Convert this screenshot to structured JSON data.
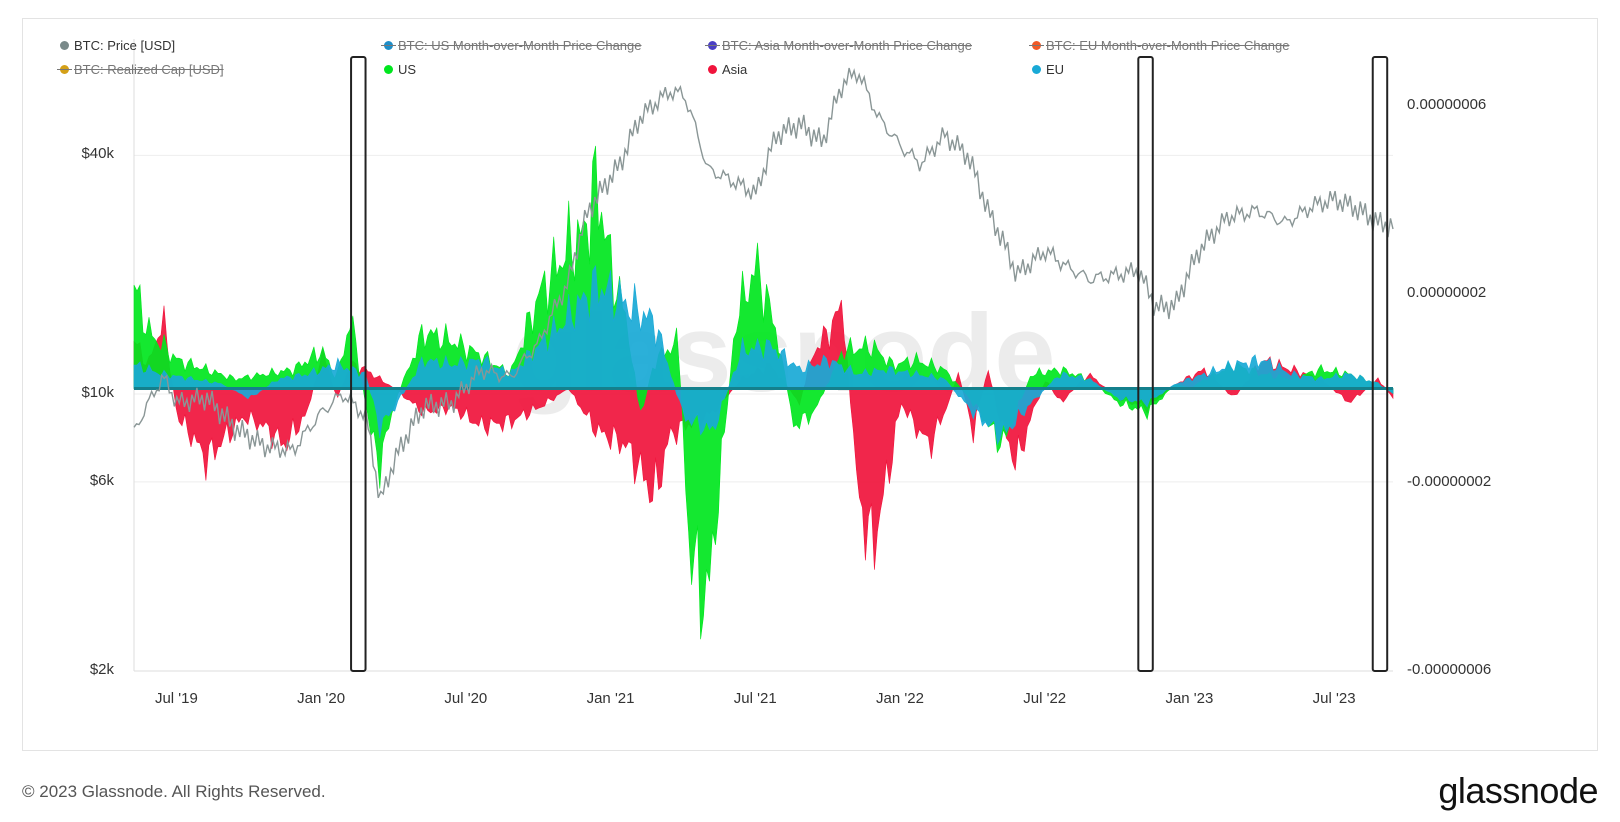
{
  "legend": [
    {
      "label": "BTC: Price [USD]",
      "color": "#7a8a8a",
      "disabled": false
    },
    {
      "label": "BTC: US Month-over-Month Price Change",
      "color": "#1e8ec8",
      "disabled": true
    },
    {
      "label": "BTC: Asia Month-over-Month Price Change",
      "color": "#4a3fc4",
      "disabled": true
    },
    {
      "label": "BTC: EU Month-over-Month Price Change",
      "color": "#f05a28",
      "disabled": true
    },
    {
      "label": "BTC: Realized Cap [USD]",
      "color": "#d4a017",
      "disabled": true
    },
    {
      "label": "US",
      "color": "#00e61e",
      "disabled": false
    },
    {
      "label": "Asia",
      "color": "#f0143c",
      "disabled": false
    },
    {
      "label": "EU",
      "color": "#19a9d6",
      "disabled": false
    }
  ],
  "footer": {
    "copyright": "© 2023 Glassnode. All Rights Reserved.",
    "logo": "glassnode"
  },
  "chart_data": {
    "type": "line",
    "title": "",
    "watermark": "glassnode",
    "x_ticks": [
      "Jul '19",
      "Jan '20",
      "Jul '20",
      "Jan '21",
      "Jul '21",
      "Jan '22",
      "Jul '22",
      "Jan '23",
      "Jul '23"
    ],
    "x_range": [
      2019.4,
      2023.75
    ],
    "left_axis": {
      "label": "",
      "scale": "log",
      "ticks": [
        "$2k",
        "$6k",
        "$10k",
        "$40k"
      ],
      "tick_values": [
        2000,
        6000,
        10000,
        40000
      ],
      "range": [
        2000,
        70000
      ]
    },
    "right_axis": {
      "label": "",
      "scale": "linear",
      "ticks": [
        "0.00000006",
        "0.00000002",
        "-0.00000002",
        "-0.00000006"
      ],
      "tick_values": [
        6e-08,
        2e-08,
        -2e-08,
        -6e-08
      ],
      "range": [
        -6e-08,
        7e-08
      ]
    },
    "series": [
      {
        "name": "BTC: Price [USD]",
        "axis": "left",
        "type": "line",
        "color": "#8a9696",
        "x": [
          2019.4,
          2019.5,
          2019.55,
          2019.65,
          2019.75,
          2019.85,
          2019.95,
          2020.05,
          2020.12,
          2020.2,
          2020.25,
          2020.3,
          2020.4,
          2020.5,
          2020.6,
          2020.7,
          2020.8,
          2020.9,
          2020.97,
          2021.02,
          2021.08,
          2021.15,
          2021.25,
          2021.3,
          2021.38,
          2021.45,
          2021.55,
          2021.62,
          2021.7,
          2021.78,
          2021.85,
          2021.9,
          2021.97,
          2022.05,
          2022.12,
          2022.2,
          2022.28,
          2022.35,
          2022.45,
          2022.55,
          2022.62,
          2022.7,
          2022.8,
          2022.87,
          2022.93,
          2023.0,
          2023.08,
          2023.18,
          2023.28,
          2023.38,
          2023.48,
          2023.55,
          2023.62,
          2023.7,
          2023.75
        ],
        "y": [
          8000,
          11000,
          9500,
          9800,
          8200,
          7400,
          7200,
          9000,
          10000,
          8800,
          5300,
          6800,
          9300,
          9500,
          11500,
          11000,
          13500,
          19000,
          29000,
          33000,
          38000,
          50000,
          58000,
          57000,
          37000,
          35000,
          32000,
          45000,
          48000,
          43000,
          61000,
          65000,
          50000,
          42000,
          38000,
          45000,
          40000,
          29000,
          20000,
          23000,
          21000,
          19500,
          20000,
          20500,
          16500,
          16800,
          23000,
          28000,
          29000,
          27000,
          30000,
          31000,
          29500,
          27000,
          26500
        ]
      },
      {
        "name": "US",
        "axis": "right",
        "type": "area",
        "color": "#00e61e",
        "x": [
          2019.4,
          2019.45,
          2019.55,
          2019.65,
          2019.75,
          2019.85,
          2019.95,
          2020.05,
          2020.1,
          2020.15,
          2020.22,
          2020.25,
          2020.3,
          2020.4,
          2020.5,
          2020.6,
          2020.7,
          2020.8,
          2020.85,
          2020.9,
          2020.95,
          2021.0,
          2021.05,
          2021.1,
          2021.15,
          2021.2,
          2021.28,
          2021.32,
          2021.38,
          2021.42,
          2021.48,
          2021.55,
          2021.62,
          2021.68,
          2021.75,
          2021.85,
          2021.95,
          2022.02,
          2022.1,
          2022.2,
          2022.3,
          2022.4,
          2022.5,
          2022.6,
          2022.7,
          2022.8,
          2022.9,
          2023.0,
          2023.05,
          2023.1,
          2023.2,
          2023.3,
          2023.4,
          2023.5,
          2023.6,
          2023.7,
          2023.75
        ],
        "y": [
          2.2e-08,
          1.2e-08,
          6e-09,
          4e-09,
          2e-09,
          3e-09,
          4e-09,
          8e-09,
          2e-09,
          1.5e-08,
          -1e-08,
          -1.6e-08,
          -3e-09,
          1.2e-08,
          1e-08,
          7e-09,
          3e-09,
          2e-08,
          2.5e-08,
          3e-08,
          3.2e-08,
          4.4e-08,
          2.5e-08,
          1.5e-08,
          -6e-09,
          6e-09,
          1e-08,
          -3.5e-08,
          -4.6e-08,
          -2.2e-08,
          1.5e-08,
          2.6e-08,
          1.2e-08,
          -8e-09,
          -5e-09,
          8e-09,
          9e-09,
          5e-09,
          6e-09,
          4e-09,
          -3e-09,
          -1.2e-08,
          3e-09,
          4e-09,
          2e-09,
          -3e-09,
          -5e-09,
          1e-09,
          0.0,
          2e-09,
          5e-09,
          3e-09,
          2e-09,
          4e-09,
          3e-09,
          1e-09,
          -1e-09
        ]
      },
      {
        "name": "Asia",
        "axis": "right",
        "type": "area",
        "color": "#f0143c",
        "x": [
          2019.4,
          2019.45,
          2019.5,
          2019.55,
          2019.6,
          2019.65,
          2019.72,
          2019.78,
          2019.85,
          2019.92,
          2020.0,
          2020.05,
          2020.1,
          2020.15,
          2020.2,
          2020.3,
          2020.4,
          2020.5,
          2020.6,
          2020.7,
          2020.8,
          2020.9,
          2021.0,
          2021.1,
          2021.2,
          2021.25,
          2021.3,
          2021.4,
          2021.5,
          2021.6,
          2021.7,
          2021.75,
          2021.8,
          2021.85,
          2021.9,
          2021.95,
          2022.0,
          2022.05,
          2022.1,
          2022.15,
          2022.2,
          2022.25,
          2022.3,
          2022.35,
          2022.4,
          2022.45,
          2022.5,
          2022.55,
          2022.6,
          2022.7,
          2022.8,
          2022.9,
          2023.0,
          2023.1,
          2023.2,
          2023.3,
          2023.4,
          2023.5,
          2023.6,
          2023.7,
          2023.75
        ],
        "y": [
          1e-08,
          5e-09,
          1.5e-08,
          -6e-09,
          -1e-08,
          -1.5e-08,
          -1e-08,
          -6e-09,
          -8e-09,
          -1.2e-08,
          -5e-09,
          8e-09,
          -2e-09,
          5e-09,
          4e-09,
          0.0,
          -5e-09,
          -4e-09,
          -8e-09,
          -7e-09,
          -4e-09,
          0.0,
          -9e-09,
          -1.2e-08,
          -2.3e-08,
          -1e-08,
          -8e-09,
          -5e-09,
          2e-09,
          5e-09,
          -3e-09,
          8e-09,
          1.2e-08,
          1.8e-08,
          -2.2e-08,
          -3.4e-08,
          -2e-08,
          -3e-09,
          -8e-09,
          -1.2e-08,
          -5e-09,
          3e-09,
          -9e-09,
          4e-09,
          -8e-09,
          -1.6e-08,
          -6e-09,
          2e-09,
          -3e-09,
          3e-09,
          -2e-09,
          -4e-09,
          1e-09,
          4e-09,
          -2e-09,
          6e-09,
          4e-09,
          2e-09,
          -3e-09,
          2e-09,
          -2e-09
        ]
      },
      {
        "name": "EU",
        "axis": "right",
        "type": "area",
        "color": "#19a9d6",
        "x": [
          2019.4,
          2019.5,
          2019.6,
          2019.7,
          2019.8,
          2019.9,
          2020.0,
          2020.1,
          2020.2,
          2020.25,
          2020.3,
          2020.4,
          2020.5,
          2020.6,
          2020.7,
          2020.8,
          2020.9,
          2021.0,
          2021.1,
          2021.2,
          2021.3,
          2021.4,
          2021.5,
          2021.6,
          2021.7,
          2021.8,
          2021.9,
          2022.0,
          2022.1,
          2022.2,
          2022.3,
          2022.4,
          2022.5,
          2022.6,
          2022.7,
          2022.8,
          2022.9,
          2023.0,
          2023.1,
          2023.2,
          2023.3,
          2023.4,
          2023.5,
          2023.6,
          2023.7,
          2023.75
        ],
        "y": [
          5e-09,
          3e-09,
          2e-09,
          1e-09,
          -2e-09,
          2e-09,
          3e-09,
          5e-09,
          3e-09,
          -8e-09,
          -4e-09,
          6e-09,
          5e-09,
          6e-09,
          3e-09,
          9e-09,
          1.5e-08,
          2.2e-08,
          1.8e-08,
          1.4e-08,
          -6e-09,
          -9e-09,
          8e-09,
          9e-09,
          4e-09,
          6e-09,
          3e-09,
          4e-09,
          3e-09,
          2e-09,
          -5e-09,
          -1e-08,
          -3e-09,
          3e-09,
          2e-09,
          -2e-09,
          -3e-09,
          1e-09,
          3e-09,
          5e-09,
          6e-09,
          3e-09,
          2e-09,
          3e-09,
          1e-09,
          -1e-09
        ]
      }
    ],
    "highlight_boxes": [
      {
        "x_start": 2020.15,
        "x_end": 2020.2
      },
      {
        "x_start": 2022.87,
        "x_end": 2022.92
      },
      {
        "x_start": 2023.68,
        "x_end": 2023.73
      }
    ],
    "grid": true
  }
}
